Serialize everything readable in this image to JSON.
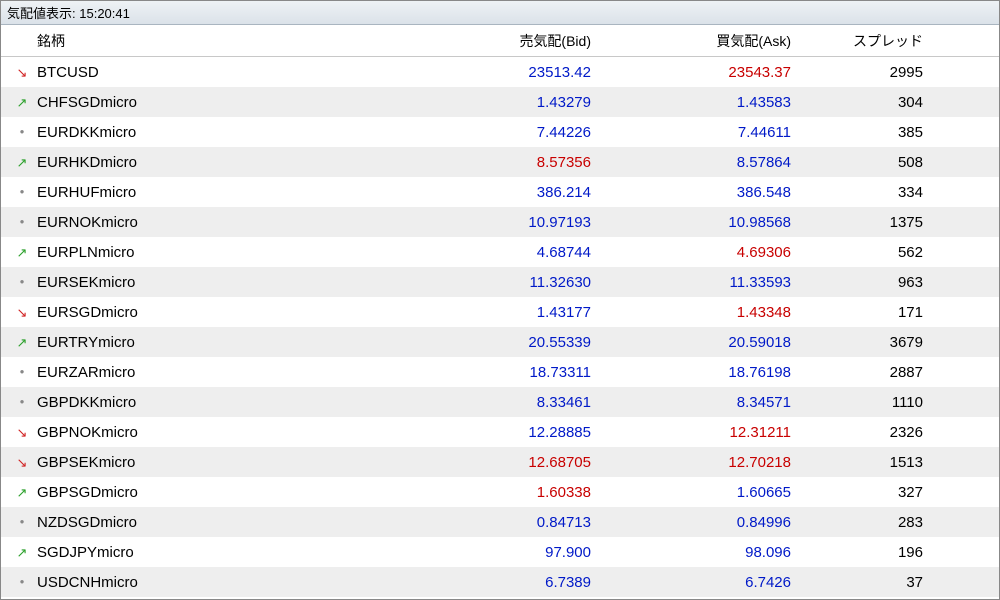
{
  "window": {
    "title_prefix": "気配値表示:",
    "timestamp": "15:20:41"
  },
  "columns": {
    "symbol": "銘柄",
    "bid": "売気配(Bid)",
    "ask": "買気配(Ask)",
    "spread": "スプレッド"
  },
  "arrows": {
    "up": "↗",
    "down": "↘",
    "flat": "●"
  },
  "colors": {
    "blue": "#0019c8",
    "red": "#c80000",
    "black": "#000000",
    "row_even_bg": "#eeeeee",
    "row_odd_bg": "#ffffff",
    "up_arrow": "#2aa02a",
    "down_arrow": "#d02020",
    "flat_dot": "#888888"
  },
  "rows": [
    {
      "dir": "down",
      "symbol": "BTCUSD",
      "bid": "23513.42",
      "bid_color": "blue",
      "ask": "23543.37",
      "ask_color": "red",
      "spread": "2995"
    },
    {
      "dir": "up",
      "symbol": "CHFSGDmicro",
      "bid": "1.43279",
      "bid_color": "blue",
      "ask": "1.43583",
      "ask_color": "blue",
      "spread": "304"
    },
    {
      "dir": "flat",
      "symbol": "EURDKKmicro",
      "bid": "7.44226",
      "bid_color": "blue",
      "ask": "7.44611",
      "ask_color": "blue",
      "spread": "385"
    },
    {
      "dir": "up",
      "symbol": "EURHKDmicro",
      "bid": "8.57356",
      "bid_color": "red",
      "ask": "8.57864",
      "ask_color": "blue",
      "spread": "508"
    },
    {
      "dir": "flat",
      "symbol": "EURHUFmicro",
      "bid": "386.214",
      "bid_color": "blue",
      "ask": "386.548",
      "ask_color": "blue",
      "spread": "334"
    },
    {
      "dir": "flat",
      "symbol": "EURNOKmicro",
      "bid": "10.97193",
      "bid_color": "blue",
      "ask": "10.98568",
      "ask_color": "blue",
      "spread": "1375"
    },
    {
      "dir": "up",
      "symbol": "EURPLNmicro",
      "bid": "4.68744",
      "bid_color": "blue",
      "ask": "4.69306",
      "ask_color": "red",
      "spread": "562"
    },
    {
      "dir": "flat",
      "symbol": "EURSEKmicro",
      "bid": "11.32630",
      "bid_color": "blue",
      "ask": "11.33593",
      "ask_color": "blue",
      "spread": "963"
    },
    {
      "dir": "down",
      "symbol": "EURSGDmicro",
      "bid": "1.43177",
      "bid_color": "blue",
      "ask": "1.43348",
      "ask_color": "red",
      "spread": "171"
    },
    {
      "dir": "up",
      "symbol": "EURTRYmicro",
      "bid": "20.55339",
      "bid_color": "blue",
      "ask": "20.59018",
      "ask_color": "blue",
      "spread": "3679"
    },
    {
      "dir": "flat",
      "symbol": "EURZARmicro",
      "bid": "18.73311",
      "bid_color": "blue",
      "ask": "18.76198",
      "ask_color": "blue",
      "spread": "2887"
    },
    {
      "dir": "flat",
      "symbol": "GBPDKKmicro",
      "bid": "8.33461",
      "bid_color": "blue",
      "ask": "8.34571",
      "ask_color": "blue",
      "spread": "1110"
    },
    {
      "dir": "down",
      "symbol": "GBPNOKmicro",
      "bid": "12.28885",
      "bid_color": "blue",
      "ask": "12.31211",
      "ask_color": "red",
      "spread": "2326"
    },
    {
      "dir": "down",
      "symbol": "GBPSEKmicro",
      "bid": "12.68705",
      "bid_color": "red",
      "ask": "12.70218",
      "ask_color": "red",
      "spread": "1513"
    },
    {
      "dir": "up",
      "symbol": "GBPSGDmicro",
      "bid": "1.60338",
      "bid_color": "red",
      "ask": "1.60665",
      "ask_color": "blue",
      "spread": "327"
    },
    {
      "dir": "flat",
      "symbol": "NZDSGDmicro",
      "bid": "0.84713",
      "bid_color": "blue",
      "ask": "0.84996",
      "ask_color": "blue",
      "spread": "283"
    },
    {
      "dir": "up",
      "symbol": "SGDJPYmicro",
      "bid": "97.900",
      "bid_color": "blue",
      "ask": "98.096",
      "ask_color": "blue",
      "spread": "196"
    },
    {
      "dir": "flat",
      "symbol": "USDCNHmicro",
      "bid": "6.7389",
      "bid_color": "blue",
      "ask": "6.7426",
      "ask_color": "blue",
      "spread": "37"
    }
  ]
}
